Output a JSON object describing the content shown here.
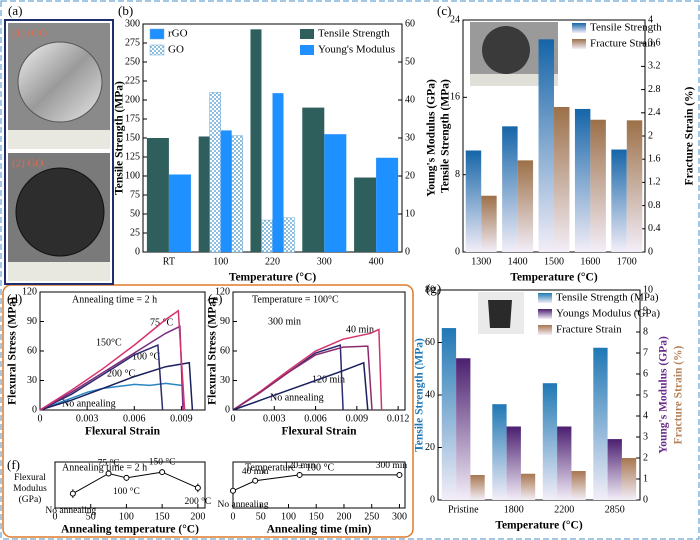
{
  "photos": {
    "panel": "(a)",
    "labels": [
      "(1) rGO",
      "(2) GO"
    ]
  },
  "chart_data": [
    {
      "type": "bar",
      "panel": "(b)",
      "categories": [
        "RT",
        "100",
        "220",
        "300",
        "400"
      ],
      "xlabel": "Temperature (°C)",
      "ylabel": "Tensile Strength (MPa)",
      "y2label": "Young's Modulus (GPa)",
      "ylim": [
        0,
        300
      ],
      "yticks": [
        0,
        25,
        50,
        75,
        100,
        125,
        150,
        175,
        200,
        225,
        250,
        275,
        300
      ],
      "y2lim": [
        0,
        60
      ],
      "y2ticks": [
        0,
        10,
        20,
        30,
        40,
        50,
        60
      ],
      "material_legend": [
        {
          "name": "rGO",
          "color": "#1e90ff"
        },
        {
          "name": "GO",
          "pattern": "hatch"
        }
      ],
      "series": [
        {
          "name": "Tensile Strength",
          "color": "#2f5f5c",
          "values": [
            150,
            152,
            293,
            190,
            98
          ]
        },
        {
          "pattern": "hatch",
          "values": [
            null,
            210,
            42,
            null,
            null
          ]
        },
        {
          "name": "Young's Modulus",
          "color": "#1e90ff",
          "axis": "y2",
          "values": [
            20.4,
            32,
            41.8,
            31,
            24.8
          ]
        },
        {
          "pattern": "hatch",
          "axis": "y2",
          "values": [
            null,
            30.6,
            9,
            null,
            null
          ]
        }
      ]
    },
    {
      "type": "bar",
      "panel": "(c)",
      "categories": [
        "1300",
        "1400",
        "1500",
        "1600",
        "1700"
      ],
      "gradient": true,
      "xlabel": "Temperature (°C)",
      "ylabel": "Tensile Strength (MPa)",
      "y2label": "Fracture Strain (%)",
      "ylim": [
        0,
        24
      ],
      "yticks": [
        0,
        8,
        16,
        24
      ],
      "y2lim": [
        0,
        4
      ],
      "y2ticks": [
        0,
        0.4,
        0.8,
        1.2,
        1.6,
        2,
        2.4,
        2.8,
        3.2,
        3.6,
        4
      ],
      "series": [
        {
          "name": "Tensile Strength",
          "color": "#1565a8",
          "values": [
            10.5,
            13,
            22,
            14.8,
            10.6
          ]
        },
        {
          "name": "Fracture Strain",
          "color": "#9c7048",
          "axis": "y2",
          "values": [
            0.97,
            1.58,
            2.5,
            2.28,
            2.27
          ]
        }
      ]
    },
    {
      "type": "line",
      "panel": "(d)",
      "xlabel": "Flexural Strain",
      "ylabel": "Flexural Stress (MPa)",
      "xlim": [
        0,
        0.0105
      ],
      "xticks": [
        0,
        0.003,
        0.006,
        0.009
      ],
      "ylim": [
        0,
        120
      ],
      "yticks": [
        0,
        30,
        60,
        90,
        120
      ],
      "annotations": [
        "Annealing time = 2 h",
        "150°C",
        "75 °C",
        "100 °C",
        "200 °C",
        "No annealing"
      ],
      "series": [
        {
          "color": "#2a86c4",
          "x": [
            0,
            0.001,
            0.002,
            0.003,
            0.004,
            0.005,
            0.006,
            0.007,
            0.008,
            0.009
          ],
          "values": [
            0,
            6,
            12,
            18,
            22,
            24,
            26,
            25,
            27,
            25
          ]
        },
        {
          "color": "#1a1f5e",
          "x": [
            0,
            0.002,
            0.004,
            0.006,
            0.008,
            0.0095,
            0.0097
          ],
          "values": [
            0,
            10,
            22,
            34,
            44,
            48,
            0
          ]
        },
        {
          "color": "#2b2a6e",
          "x": [
            0,
            0.002,
            0.004,
            0.006,
            0.0075,
            0.0078
          ],
          "values": [
            0,
            16,
            36,
            56,
            66,
            0
          ]
        },
        {
          "color": "#7a2d7e",
          "x": [
            0,
            0.002,
            0.004,
            0.006,
            0.008,
            0.0089,
            0.0091
          ],
          "values": [
            0,
            18,
            38,
            58,
            78,
            85,
            0
          ]
        },
        {
          "color": "#d6336c",
          "x": [
            0,
            0.002,
            0.004,
            0.006,
            0.008,
            0.0088,
            0.0092
          ],
          "values": [
            0,
            20,
            42,
            66,
            92,
            101,
            0
          ]
        }
      ]
    },
    {
      "type": "line",
      "panel": "(e)",
      "xlabel": "Flexural Strain",
      "ylabel": "Flexural Stress (MPa)",
      "xlim": [
        0,
        0.0125
      ],
      "xticks": [
        0,
        0.003,
        0.006,
        0.009,
        0.012
      ],
      "ylim": [
        0,
        120
      ],
      "yticks": [
        0,
        30,
        60,
        90,
        120
      ],
      "annotations": [
        "Temperature = 100°C",
        "300 min",
        "40 min",
        "120 min",
        "No annealing"
      ],
      "series": [
        {
          "color": "#2b2a6e",
          "x": [
            0,
            0.002,
            0.004,
            0.006,
            0.0078,
            0.008
          ],
          "values": [
            0,
            18,
            38,
            58,
            66,
            0
          ]
        },
        {
          "color": "#d6336c",
          "x": [
            0,
            0.002,
            0.004,
            0.006,
            0.008,
            0.01,
            0.0106,
            0.0108
          ],
          "values": [
            0,
            19,
            40,
            60,
            72,
            78,
            82,
            0
          ]
        },
        {
          "color": "#8b2a6e",
          "x": [
            0,
            0.002,
            0.004,
            0.006,
            0.008,
            0.0098,
            0.0101
          ],
          "values": [
            0,
            18,
            38,
            56,
            64,
            65,
            0
          ]
        },
        {
          "color": "#1a1f5e",
          "x": [
            0,
            0.002,
            0.004,
            0.006,
            0.008,
            0.0095,
            0.0098
          ],
          "values": [
            0,
            10,
            20,
            30,
            40,
            48,
            0
          ]
        }
      ]
    },
    {
      "type": "errorbar",
      "panel": "(f)",
      "xlabel": "Annealing temperature (°C)",
      "ylabel_lines": [
        "Flexural",
        "Modulus",
        "(GPa)"
      ],
      "xlim": [
        0,
        210
      ],
      "xticks": [
        0,
        50,
        100,
        150,
        200
      ],
      "ylim": [
        0,
        16
      ],
      "color": "#000000",
      "annotations": [
        "Annealing time = 2 h"
      ],
      "x": [
        25,
        75,
        100,
        150,
        200
      ],
      "values": [
        5,
        12,
        10.5,
        12.5,
        7
      ],
      "errors": [
        1.5,
        1,
        1,
        1,
        1.5
      ],
      "point_labels": [
        "No annealing",
        "75 °C",
        "100 °C",
        "150 °C",
        "200 °C"
      ]
    },
    {
      "type": "errorbar",
      "xlabel": "Annealing time (min)",
      "xlim": [
        0,
        310
      ],
      "xticks": [
        0,
        50,
        100,
        150,
        200,
        250,
        300
      ],
      "ylim": [
        0,
        16
      ],
      "color": "#000000",
      "annotations": [
        "Temperature = 100 °C"
      ],
      "x": [
        0,
        40,
        120,
        300
      ],
      "values": [
        6,
        9.5,
        11.5,
        11.5
      ],
      "errors": [
        1.5,
        1,
        1,
        0.8
      ],
      "point_labels": [
        "No annealing",
        "40 min",
        "120 min",
        "300 min"
      ]
    },
    {
      "type": "bar",
      "panel": "(g)",
      "categories": [
        "Pristine",
        "1800",
        "2200",
        "2850"
      ],
      "gradient": true,
      "xlabel": "Temperature (°C)",
      "ylabel": "Tensile Strength (MPa)",
      "ylabel_color": "#1f78b4",
      "y2label": [
        "Young's Modulus (GPa)",
        "Fracture Strain (%)"
      ],
      "y2label_colors": [
        "#6a2c8a",
        "#b5835a"
      ],
      "ylim": [
        0,
        80
      ],
      "yticks": [
        0,
        20,
        40,
        60,
        80
      ],
      "y2lim": [
        0,
        10
      ],
      "y2ticks": [
        0,
        1,
        2,
        3,
        4,
        5,
        6,
        7,
        8,
        9,
        10
      ],
      "series": [
        {
          "name": "Tensile Strength (MPa)",
          "color": "#1f78b4",
          "values": [
            65.5,
            36.5,
            44.5,
            58
          ]
        },
        {
          "name": "Youngs Modulus (GPa)",
          "color": "#4b1f70",
          "axis": "y2",
          "values": [
            6.75,
            3.5,
            3.5,
            2.9
          ]
        },
        {
          "name": "Fracture Strain",
          "color": "#a8774f",
          "axis": "y2",
          "values": [
            1.19,
            1.25,
            1.38,
            2
          ]
        }
      ]
    }
  ]
}
